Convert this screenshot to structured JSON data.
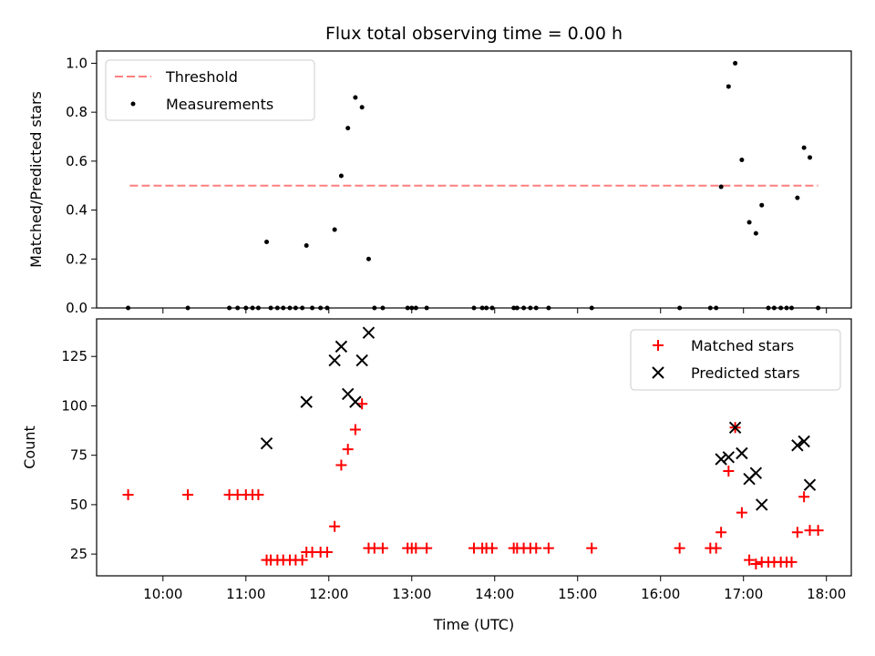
{
  "chart_data": {
    "type": "scatter",
    "title": "Flux total observing time = 0.00 h",
    "xlabel": "Time (UTC)",
    "xlim": [
      9.2,
      18.3
    ],
    "x_ticks": [
      10,
      11,
      12,
      13,
      14,
      15,
      16,
      17,
      18
    ],
    "x_tick_labels": [
      "10:00",
      "11:00",
      "12:00",
      "13:00",
      "14:00",
      "15:00",
      "16:00",
      "17:00",
      "18:00"
    ],
    "top": {
      "ylabel": "Matched/Predicted stars",
      "ylim": [
        0,
        1.05
      ],
      "y_ticks": [
        0.0,
        0.2,
        0.4,
        0.6,
        0.8,
        1.0
      ],
      "y_tick_labels": [
        "0.0",
        "0.2",
        "0.4",
        "0.6",
        "0.8",
        "1.0"
      ],
      "legend": {
        "placement": "upper-left",
        "entries": [
          "Threshold",
          "Measurements"
        ]
      },
      "threshold": {
        "name": "Threshold",
        "value": 0.5,
        "x_range": [
          9.6,
          17.9
        ],
        "color": "#ff7f7f"
      },
      "measurements": {
        "name": "Measurements",
        "color": "#000000",
        "points": [
          [
            9.58,
            0
          ],
          [
            10.3,
            0
          ],
          [
            10.8,
            0
          ],
          [
            10.9,
            0
          ],
          [
            11.0,
            0
          ],
          [
            11.08,
            0
          ],
          [
            11.15,
            0
          ],
          [
            11.25,
            0.27
          ],
          [
            11.3,
            0
          ],
          [
            11.38,
            0
          ],
          [
            11.45,
            0
          ],
          [
            11.53,
            0
          ],
          [
            11.6,
            0
          ],
          [
            11.68,
            0
          ],
          [
            11.73,
            0.255
          ],
          [
            11.8,
            0
          ],
          [
            11.9,
            0
          ],
          [
            11.98,
            0
          ],
          [
            12.07,
            0.32
          ],
          [
            12.15,
            0.54
          ],
          [
            12.23,
            0.735
          ],
          [
            12.32,
            0.86
          ],
          [
            12.4,
            0.82
          ],
          [
            12.48,
            0.2
          ],
          [
            12.55,
            0
          ],
          [
            12.65,
            0
          ],
          [
            12.95,
            0
          ],
          [
            13.0,
            0
          ],
          [
            13.05,
            0
          ],
          [
            13.18,
            0
          ],
          [
            13.75,
            0
          ],
          [
            13.85,
            0
          ],
          [
            13.9,
            0
          ],
          [
            13.97,
            0
          ],
          [
            14.23,
            0
          ],
          [
            14.27,
            0
          ],
          [
            14.35,
            0
          ],
          [
            14.43,
            0
          ],
          [
            14.5,
            0
          ],
          [
            14.65,
            0
          ],
          [
            15.17,
            0
          ],
          [
            16.23,
            0
          ],
          [
            16.6,
            0
          ],
          [
            16.67,
            0
          ],
          [
            16.73,
            0.495
          ],
          [
            16.82,
            0.905
          ],
          [
            16.9,
            1.0
          ],
          [
            16.98,
            0.605
          ],
          [
            17.07,
            0.35
          ],
          [
            17.15,
            0.305
          ],
          [
            17.22,
            0.42
          ],
          [
            17.3,
            0
          ],
          [
            17.37,
            0
          ],
          [
            17.45,
            0
          ],
          [
            17.52,
            0
          ],
          [
            17.58,
            0
          ],
          [
            17.65,
            0.45
          ],
          [
            17.73,
            0.655
          ],
          [
            17.8,
            0.615
          ],
          [
            17.9,
            0
          ]
        ]
      }
    },
    "bottom": {
      "ylabel": "Count",
      "ylim": [
        14,
        144
      ],
      "y_ticks": [
        25,
        50,
        75,
        100,
        125
      ],
      "y_tick_labels": [
        "25",
        "50",
        "75",
        "100",
        "125"
      ],
      "legend": {
        "placement": "upper-right",
        "entries": [
          "Matched stars",
          "Predicted stars"
        ]
      },
      "series": [
        {
          "name": "Matched stars",
          "marker": "plus",
          "color": "#ff0000",
          "points": [
            [
              9.58,
              55
            ],
            [
              10.3,
              55
            ],
            [
              10.8,
              55
            ],
            [
              10.9,
              55
            ],
            [
              11.0,
              55
            ],
            [
              11.08,
              55
            ],
            [
              11.15,
              55
            ],
            [
              11.25,
              22
            ],
            [
              11.3,
              22
            ],
            [
              11.38,
              22
            ],
            [
              11.45,
              22
            ],
            [
              11.53,
              22
            ],
            [
              11.6,
              22
            ],
            [
              11.68,
              22
            ],
            [
              11.73,
              26
            ],
            [
              11.8,
              26
            ],
            [
              11.9,
              26
            ],
            [
              11.98,
              26
            ],
            [
              12.07,
              39
            ],
            [
              12.15,
              70
            ],
            [
              12.23,
              78
            ],
            [
              12.32,
              88
            ],
            [
              12.4,
              101
            ],
            [
              12.48,
              28
            ],
            [
              12.55,
              28
            ],
            [
              12.65,
              28
            ],
            [
              12.95,
              28
            ],
            [
              13.0,
              28
            ],
            [
              13.05,
              28
            ],
            [
              13.18,
              28
            ],
            [
              13.75,
              28
            ],
            [
              13.85,
              28
            ],
            [
              13.9,
              28
            ],
            [
              13.97,
              28
            ],
            [
              14.23,
              28
            ],
            [
              14.27,
              28
            ],
            [
              14.35,
              28
            ],
            [
              14.43,
              28
            ],
            [
              14.5,
              28
            ],
            [
              14.65,
              28
            ],
            [
              15.17,
              28
            ],
            [
              16.23,
              28
            ],
            [
              16.6,
              28
            ],
            [
              16.67,
              28
            ],
            [
              16.73,
              36
            ],
            [
              16.82,
              67
            ],
            [
              16.9,
              89
            ],
            [
              16.98,
              46
            ],
            [
              17.07,
              22
            ],
            [
              17.15,
              20
            ],
            [
              17.22,
              21
            ],
            [
              17.3,
              21
            ],
            [
              17.37,
              21
            ],
            [
              17.45,
              21
            ],
            [
              17.52,
              21
            ],
            [
              17.58,
              21
            ],
            [
              17.65,
              36
            ],
            [
              17.73,
              54
            ],
            [
              17.8,
              37
            ],
            [
              17.9,
              37
            ]
          ]
        },
        {
          "name": "Predicted stars",
          "marker": "x",
          "color": "#000000",
          "points": [
            [
              11.25,
              81
            ],
            [
              11.73,
              102
            ],
            [
              12.07,
              123
            ],
            [
              12.15,
              130
            ],
            [
              12.23,
              106
            ],
            [
              12.32,
              102
            ],
            [
              12.4,
              123
            ],
            [
              12.48,
              137
            ],
            [
              16.73,
              73
            ],
            [
              16.82,
              74
            ],
            [
              16.9,
              89
            ],
            [
              16.98,
              76
            ],
            [
              17.07,
              63
            ],
            [
              17.15,
              66
            ],
            [
              17.22,
              50
            ],
            [
              17.65,
              80
            ],
            [
              17.73,
              82
            ],
            [
              17.8,
              60
            ]
          ]
        }
      ]
    }
  }
}
